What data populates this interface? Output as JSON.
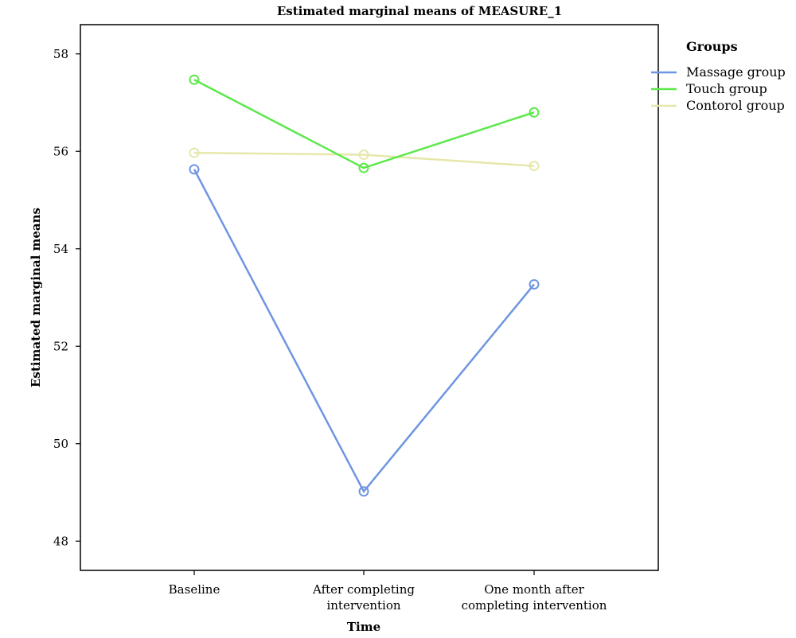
{
  "chart_data": {
    "type": "line",
    "title": "Estimated marginal means of MEASURE_1",
    "xlabel": "Time",
    "ylabel": "Estimated marginal means",
    "categories": [
      [
        "Baseline"
      ],
      [
        "After completing",
        "intervention"
      ],
      [
        "One month after",
        "completing intervention"
      ]
    ],
    "ylim": [
      47.4,
      58.6
    ],
    "yticks": [
      48,
      50,
      52,
      54,
      56,
      58
    ],
    "grid": false,
    "legend": {
      "title": "Groups",
      "position": "right"
    },
    "series": [
      {
        "name": "Massage group",
        "color": "#6f95e2",
        "values": [
          55.63,
          49.02,
          53.27
        ]
      },
      {
        "name": "Touch group",
        "color": "#5de84c",
        "values": [
          57.47,
          55.66,
          56.8
        ]
      },
      {
        "name": "Contorol group",
        "color": "#e6e7aa",
        "values": [
          55.97,
          55.93,
          55.7
        ]
      }
    ]
  }
}
